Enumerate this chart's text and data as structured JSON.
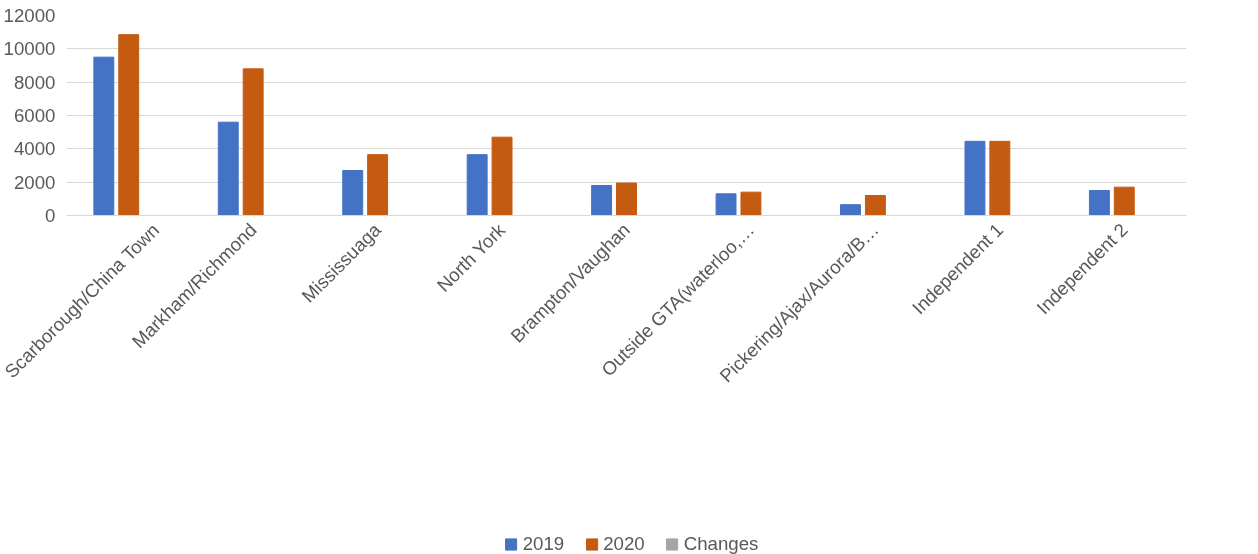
{
  "chart_data": {
    "type": "bar",
    "categories": [
      "Scarborough/China Town",
      "Markham/Richmond",
      "Mississuaga",
      "North York",
      "Brampton/Vaughan",
      "Outside GTA(waterloo,…",
      "Pickering/Ajax/Aurora/B…",
      "Independent 1",
      "Independent 2"
    ],
    "series": [
      {
        "name": "2019",
        "color": "#4472c4",
        "values": [
          9500,
          5600,
          2700,
          3650,
          1800,
          1300,
          650,
          4450,
          1500
        ]
      },
      {
        "name": "2020",
        "color": "#c55a11",
        "values": [
          10850,
          8800,
          3650,
          4700,
          1950,
          1400,
          1200,
          4450,
          1700
        ]
      },
      {
        "name": "Changes",
        "color": "#a5a5a5",
        "values": [
          null,
          null,
          null,
          null,
          null,
          null,
          null,
          null,
          null
        ]
      }
    ],
    "ylim": [
      0,
      12000
    ],
    "yticks": [
      0,
      2000,
      4000,
      6000,
      8000,
      10000,
      12000
    ],
    "grid": "y",
    "legend": "bottom"
  }
}
